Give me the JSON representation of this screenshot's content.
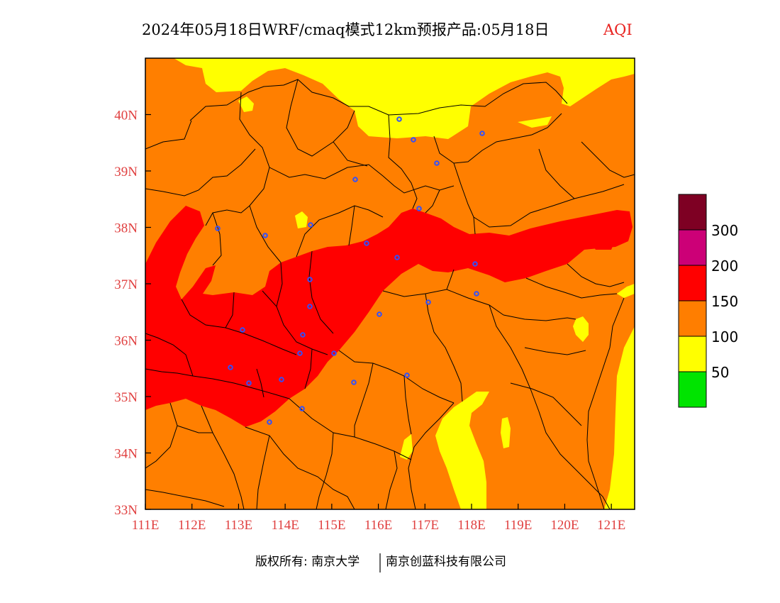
{
  "title": {
    "main": "2024年05月18日WRF/cmaq模式12km预报产品:05月18日",
    "variable": "AQI"
  },
  "axes": {
    "lat_labels": [
      "40N",
      "39N",
      "38N",
      "37N",
      "36N",
      "35N",
      "34N",
      "33N"
    ],
    "lon_labels": [
      "111E",
      "112E",
      "113E",
      "114E",
      "115E",
      "116E",
      "117E",
      "118E",
      "119E",
      "120E",
      "121E"
    ],
    "lon_range": [
      111,
      121.5
    ],
    "lat_range": [
      33,
      41
    ]
  },
  "legend": {
    "categories": [
      {
        "color": "#00e400"
      },
      {
        "color": "#ffff00"
      },
      {
        "color": "#ff7e00"
      },
      {
        "color": "#ff0000"
      },
      {
        "color": "#cc0077"
      },
      {
        "color": "#7e0023"
      }
    ],
    "labels": [
      "50",
      "100",
      "150",
      "200",
      "300"
    ]
  },
  "footer": {
    "left": "版权所有: 南京大学",
    "right": "南京创蓝科技有限公司"
  },
  "colors": {
    "yellow": "#ffff00",
    "orange": "#ff7f00",
    "red": "#ff0000",
    "green": "#00e400",
    "boundary": "#000000",
    "city_marker": "#3050ff",
    "tick_label": "#e04040"
  }
}
